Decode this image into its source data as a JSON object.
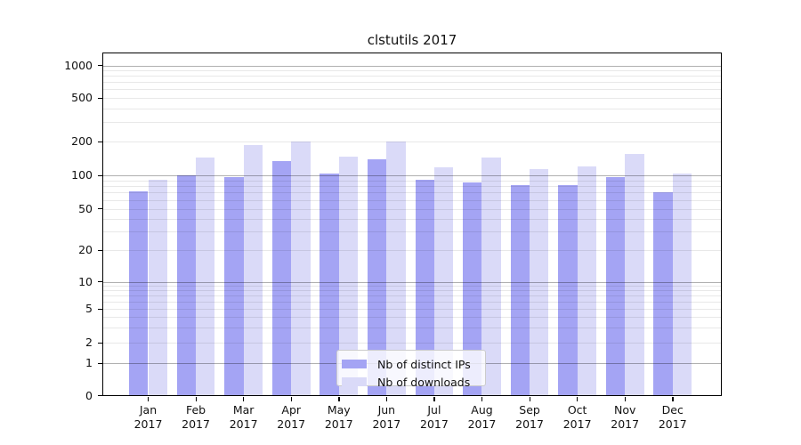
{
  "chart_data": {
    "type": "bar",
    "title": "clstutils 2017",
    "yscale": "symlog",
    "grid": true,
    "legend_position": "lower center",
    "categories": [
      "Jan 2017",
      "Feb 2017",
      "Mar 2017",
      "Apr 2017",
      "May 2017",
      "Jun 2017",
      "Jul 2017",
      "Aug 2017",
      "Sep 2017",
      "Oct 2017",
      "Nov 2017",
      "Dec 2017"
    ],
    "series": [
      {
        "name": "Nb of distinct IPs",
        "color": "#a4a4f4",
        "values": [
          72,
          100,
          97,
          133,
          104,
          138,
          92,
          86,
          82,
          81,
          96,
          70
        ]
      },
      {
        "name": "Nb of downloads",
        "color": "#dadaf8",
        "values": [
          92,
          145,
          186,
          200,
          148,
          200,
          117,
          143,
          114,
          121,
          154,
          103
        ]
      }
    ],
    "y_ticks": [
      0,
      1,
      2,
      5,
      10,
      20,
      50,
      100,
      200,
      500,
      1000
    ],
    "ylim": [
      0,
      1300
    ],
    "colors": {
      "major_grid": "#b0b0b0",
      "minor_grid": "#e8e8e8",
      "axis": "#000000",
      "background": "#ffffff"
    }
  }
}
